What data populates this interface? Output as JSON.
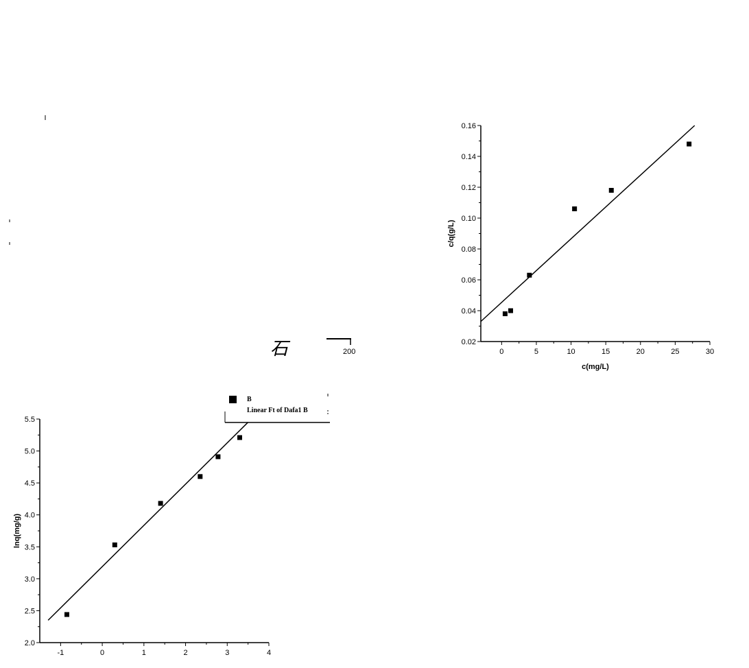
{
  "stray": {
    "glyph": "石",
    "tick_label": "200"
  },
  "chart_data": [
    {
      "id": "chart-top",
      "type": "scatter",
      "xlabel": "c(mg/L)",
      "ylabel": "c/q(g/L)",
      "xlim": [
        -3,
        30
      ],
      "ylim": [
        0.02,
        0.16
      ],
      "xticks": [
        0,
        5,
        10,
        15,
        20,
        25,
        30
      ],
      "yticks": [
        0.02,
        0.04,
        0.06,
        0.08,
        0.1,
        0.12,
        0.14,
        0.16
      ],
      "xtick_labels": [
        "0",
        "5",
        "10",
        "15",
        "20",
        "25",
        "30"
      ],
      "ytick_labels": [
        "0.02",
        "0.04",
        "0.06",
        "0.08",
        "0.10",
        "0.12",
        "0.14",
        "0.16"
      ],
      "series": [
        {
          "x": [
            0.5,
            1.3,
            4.0,
            10.5,
            15.8,
            27.0
          ],
          "y": [
            0.038,
            0.04,
            0.063,
            0.106,
            0.118,
            0.148
          ]
        }
      ],
      "fit_line": {
        "x": [
          -3,
          27.8
        ],
        "y": [
          0.033,
          0.16
        ]
      }
    },
    {
      "id": "chart-bottom",
      "type": "scatter",
      "xlabel": "",
      "ylabel": "lnq(mg/g)",
      "xlim": [
        -1.5,
        4
      ],
      "ylim": [
        2.0,
        5.5
      ],
      "xticks": [
        -1,
        0,
        1,
        2,
        3,
        4
      ],
      "yticks": [
        2.0,
        2.5,
        3.0,
        3.5,
        4.0,
        4.5,
        5.0,
        5.5
      ],
      "xtick_labels": [
        "-1",
        "0",
        "1",
        "2",
        "3",
        "4"
      ],
      "ytick_labels": [
        "2.0",
        "2.5",
        "3.0",
        "3.5",
        "4.0",
        "4.5",
        "5.0",
        "5.5"
      ],
      "series": [
        {
          "name": "B",
          "x": [
            -0.85,
            0.3,
            1.4,
            2.35,
            2.78,
            3.3
          ],
          "y": [
            2.44,
            3.53,
            4.18,
            4.6,
            4.91,
            5.21
          ]
        }
      ],
      "fit_line": {
        "name": "Linear Ft of Dafa1 B",
        "x": [
          -1.3,
          3.5
        ],
        "y": [
          2.35,
          5.45
        ]
      },
      "legend": {
        "placement": "top-right",
        "entries": [
          "B",
          "Linear Ft of Dafa1 B"
        ]
      }
    }
  ]
}
